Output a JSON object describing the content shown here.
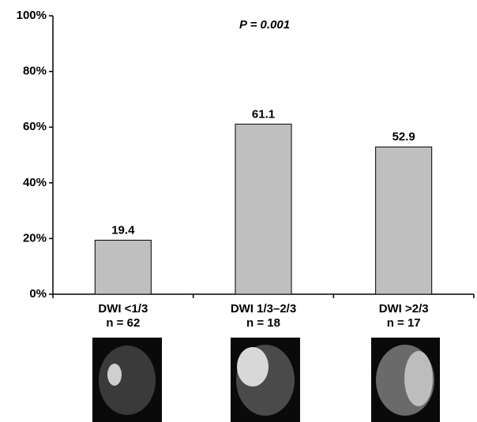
{
  "chart_data": {
    "type": "bar",
    "annotation": "P = 0.001",
    "categories": [
      "DWI <1/3",
      "DWI 1/3–2/3",
      "DWI >2/3"
    ],
    "sublabels": [
      "n = 62",
      "n = 18",
      "n = 17"
    ],
    "values": [
      19.4,
      61.1,
      52.9
    ],
    "color": "#bfbfbf",
    "ylim": [
      0,
      100
    ],
    "yticks": [
      {
        "value": 0,
        "label": "0%"
      },
      {
        "value": 20,
        "label": "20%"
      },
      {
        "value": 40,
        "label": "40%"
      },
      {
        "value": 60,
        "label": "60%"
      },
      {
        "value": 80,
        "label": "80%"
      },
      {
        "value": 100,
        "label": "100%"
      }
    ],
    "grid": false
  }
}
